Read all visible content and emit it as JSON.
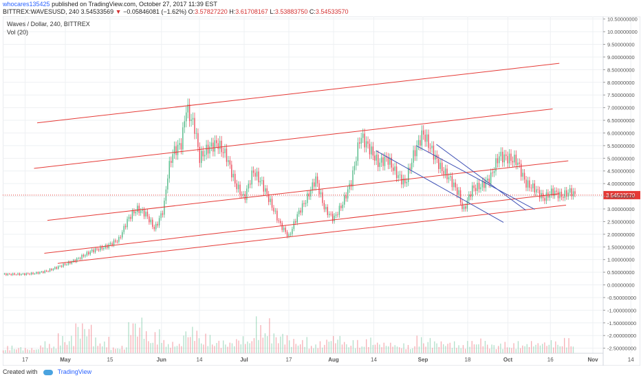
{
  "header": {
    "username": "whocares135425",
    "published_text": "published on TradingView.com, October 27, 2017 11:39 EST",
    "symbol": "BITTREX:WAVESUSD, 240",
    "last": "3.54533569",
    "arrow": "▼",
    "change": "−0.05846081 (−1.62%)",
    "o_label": "O:",
    "o_val": "3.57827220",
    "h_label": "H:",
    "h_val": "3.61708167",
    "l_label": "L:",
    "l_val": "3.53883750",
    "c_label": "C:",
    "c_val": "3.54533570"
  },
  "legend": {
    "title": "Waves / Dollar, 240, BITTREX",
    "vol": "Vol (20)"
  },
  "chart_data": {
    "type": "candlestick",
    "ylim": [
      -2.7,
      10.6
    ],
    "y_ticks": [
      10.5,
      10,
      9.5,
      9,
      8.5,
      8,
      7.5,
      7,
      6.5,
      6,
      5.5,
      5,
      4.5,
      4,
      3.5,
      3,
      2.5,
      2,
      1.5,
      1,
      0.5,
      0,
      -0.5,
      -1,
      -1.5,
      -2,
      -2.5
    ],
    "y_tick_labels": [
      "10.50000000",
      "10.00000000",
      "9.50000000",
      "9.00000000",
      "8.50000000",
      "8.00000000",
      "7.50000000",
      "7.00000000",
      "6.50000000",
      "6.00000000",
      "5.50000000",
      "5.00000000",
      "4.50000000",
      "4.00000000",
      "3.50000000",
      "3.00000000",
      "2.50000000",
      "2.00000000",
      "1.50000000",
      "1.00000000",
      "0.50000000",
      "0.00000000",
      "-0.50000000",
      "-1.00000000",
      "-1.50000000",
      "-2.00000000",
      "-2.50000000"
    ],
    "x_ticks": [
      {
        "label": "17",
        "t": 0.05
      },
      {
        "label": "May",
        "t": 0.14
      },
      {
        "label": "15",
        "t": 0.24
      },
      {
        "label": "Jun",
        "t": 0.355
      },
      {
        "label": "14",
        "t": 0.44
      },
      {
        "label": "Jul",
        "t": 0.54
      },
      {
        "label": "17",
        "t": 0.64
      },
      {
        "label": "Aug",
        "t": 0.74
      },
      {
        "label": "14",
        "t": 0.83
      },
      {
        "label": "Sep",
        "t": 0.94
      },
      {
        "label": "18",
        "t": 1.04
      },
      {
        "label": "Oct",
        "t": 1.13
      },
      {
        "label": "16",
        "t": 1.225
      },
      {
        "label": "Nov",
        "t": 1.32
      },
      {
        "label": "14",
        "t": 1.405
      }
    ],
    "price_path": [
      [
        0,
        0.42
      ],
      [
        0.04,
        0.42
      ],
      [
        0.07,
        0.45
      ],
      [
        0.1,
        0.55
      ],
      [
        0.13,
        0.75
      ],
      [
        0.16,
        0.95
      ],
      [
        0.2,
        1.35
      ],
      [
        0.23,
        1.5
      ],
      [
        0.26,
        1.8
      ],
      [
        0.28,
        2.6
      ],
      [
        0.3,
        3.0
      ],
      [
        0.32,
        2.8
      ],
      [
        0.34,
        2.2
      ],
      [
        0.36,
        3.0
      ],
      [
        0.37,
        4.5
      ],
      [
        0.38,
        5.2
      ],
      [
        0.4,
        5.6
      ],
      [
        0.41,
        7.0
      ],
      [
        0.43,
        6.2
      ],
      [
        0.44,
        5.0
      ],
      [
        0.46,
        5.4
      ],
      [
        0.48,
        5.6
      ],
      [
        0.5,
        5.1
      ],
      [
        0.52,
        4.0
      ],
      [
        0.54,
        3.4
      ],
      [
        0.56,
        4.5
      ],
      [
        0.58,
        4.0
      ],
      [
        0.6,
        3.2
      ],
      [
        0.62,
        2.4
      ],
      [
        0.64,
        1.9
      ],
      [
        0.66,
        2.8
      ],
      [
        0.68,
        3.4
      ],
      [
        0.7,
        4.2
      ],
      [
        0.72,
        3.0
      ],
      [
        0.74,
        2.6
      ],
      [
        0.76,
        3.2
      ],
      [
        0.78,
        4.1
      ],
      [
        0.8,
        5.9
      ],
      [
        0.82,
        5.4
      ],
      [
        0.84,
        4.8
      ],
      [
        0.86,
        5.0
      ],
      [
        0.88,
        4.4
      ],
      [
        0.9,
        4.0
      ],
      [
        0.92,
        5.2
      ],
      [
        0.94,
        6.0
      ],
      [
        0.96,
        5.3
      ],
      [
        0.98,
        4.6
      ],
      [
        1.0,
        4.2
      ],
      [
        1.02,
        3.6
      ],
      [
        1.03,
        2.9
      ],
      [
        1.05,
        3.8
      ],
      [
        1.07,
        3.9
      ],
      [
        1.09,
        4.2
      ],
      [
        1.11,
        5.1
      ],
      [
        1.13,
        5.0
      ],
      [
        1.15,
        4.9
      ],
      [
        1.17,
        4.0
      ],
      [
        1.19,
        3.8
      ],
      [
        1.21,
        3.4
      ],
      [
        1.23,
        3.7
      ],
      [
        1.25,
        3.5
      ],
      [
        1.27,
        3.7
      ],
      [
        1.28,
        3.55
      ]
    ],
    "volumes": [
      0.2,
      0.15,
      0.3,
      0.5,
      0.9,
      0.4,
      0.2,
      1.0,
      0.6,
      0.3,
      0.7,
      0.5,
      0.35,
      0.45,
      0.9,
      0.6,
      0.4,
      0.3,
      0.5,
      0.35,
      0.4,
      0.3,
      0.25,
      0.45,
      0.35,
      0.3,
      0.4,
      0.28,
      0.3,
      0.32,
      0.35,
      0.4
    ],
    "red_channels": [
      [
        [
          0.077,
          6.4
        ],
        [
          1.245,
          8.75
        ]
      ],
      [
        [
          0.07,
          4.6
        ],
        [
          1.23,
          6.95
        ]
      ],
      [
        [
          0.1,
          2.55
        ],
        [
          1.265,
          4.9
        ]
      ],
      [
        [
          0.093,
          1.25
        ],
        [
          1.245,
          3.6
        ]
      ],
      [
        [
          0.123,
          0.85
        ],
        [
          1.26,
          3.15
        ]
      ]
    ],
    "blue_channels": [
      [
        [
          0.925,
          5.5
        ],
        [
          1.19,
          2.98
        ]
      ],
      [
        [
          0.97,
          5.55
        ],
        [
          1.17,
          2.95
        ]
      ],
      [
        [
          0.835,
          5.3
        ],
        [
          1.12,
          2.47
        ]
      ]
    ],
    "last_price": 3.545,
    "last_price_label": "3.54533570"
  },
  "footer": {
    "created": "Created with",
    "brand": "TradingView"
  },
  "colors": {
    "up": "#53b987",
    "down": "#eb4d5c",
    "channel": "#e53935",
    "trend": "#3f51b5",
    "label_bg": "#e53935"
  }
}
